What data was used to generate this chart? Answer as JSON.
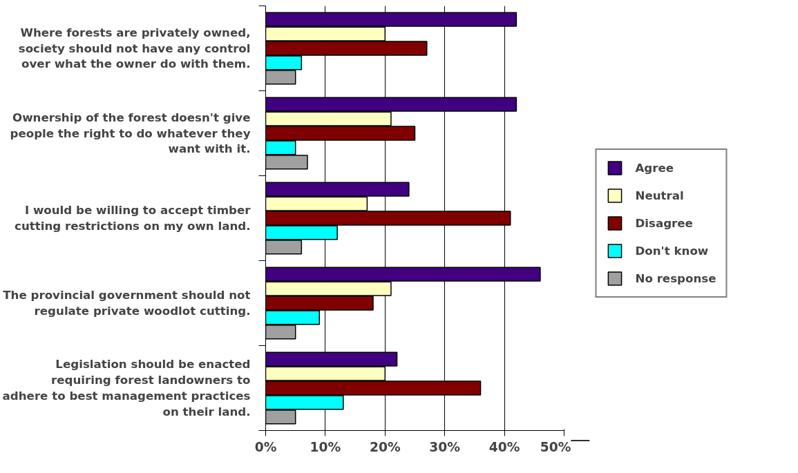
{
  "chart_data": {
    "type": "bar",
    "orientation": "horizontal",
    "categories": [
      "Where forests are privately owned, society should not have any control over what the owner do with them.",
      "Ownership of the forest doesn't give people the right to do whatever they want with it.",
      "I would be willing to accept timber cutting restrictions on my own land.",
      "The provincial government should not regulate private woodlot cutting.",
      "Legislation should be enacted requiring forest landowners to adhere to best management practices on their land."
    ],
    "series": [
      {
        "name": "Agree",
        "color": "#400080",
        "values": [
          42,
          42,
          24,
          46,
          22
        ]
      },
      {
        "name": "Neutral",
        "color": "#ffffc0",
        "values": [
          20,
          21,
          17,
          21,
          20
        ]
      },
      {
        "name": "Disagree",
        "color": "#800000",
        "values": [
          27,
          25,
          41,
          18,
          36
        ]
      },
      {
        "name": "Don't know",
        "color": "#00ffff",
        "values": [
          6,
          5,
          12,
          9,
          13
        ]
      },
      {
        "name": "No response",
        "color": "#a0a0a0",
        "values": [
          5,
          7,
          6,
          5,
          5
        ]
      }
    ],
    "xlim": [
      0,
      50
    ],
    "xticks": [
      {
        "value": 0,
        "label": "0%"
      },
      {
        "value": 10,
        "label": "10%"
      },
      {
        "value": 20,
        "label": "20%"
      },
      {
        "value": 30,
        "label": "30%"
      },
      {
        "value": 40,
        "label": "40%"
      },
      {
        "value": 50,
        "label": "50%"
      }
    ],
    "grid": "x",
    "legend": "right"
  }
}
